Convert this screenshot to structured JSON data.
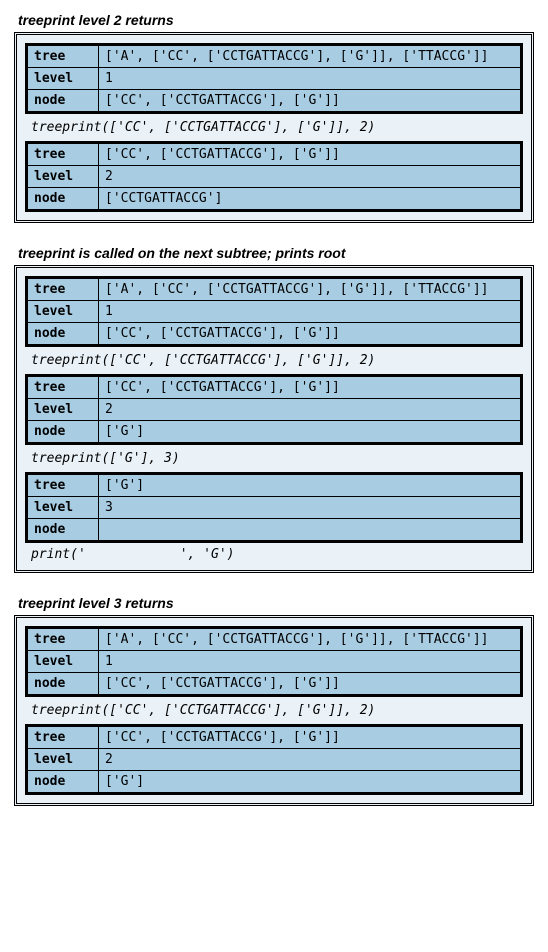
{
  "colors": {
    "outer_bg": "#eaf2f8",
    "table_bg": "#a8cde3",
    "border": "#000000"
  },
  "blocks": [
    {
      "caption": "treeprint level 2 returns",
      "segments": [
        {
          "type": "table",
          "rows": [
            {
              "label": "tree",
              "value": "['A', ['CC', ['CCTGATTACCG'], ['G']], ['TTACCG']]"
            },
            {
              "label": "level",
              "value": "1"
            },
            {
              "label": "node",
              "value": "['CC', ['CCTGATTACCG'], ['G']]"
            }
          ]
        },
        {
          "type": "call",
          "text": "treeprint(['CC', ['CCTGATTACCG'], ['G']], 2)"
        },
        {
          "type": "table",
          "rows": [
            {
              "label": "tree",
              "value": "['CC', ['CCTGATTACCG'], ['G']]"
            },
            {
              "label": "level",
              "value": "2"
            },
            {
              "label": "node",
              "value": "['CCTGATTACCG']"
            }
          ]
        }
      ]
    },
    {
      "caption": "treeprint is called on the next subtree; prints root",
      "segments": [
        {
          "type": "table",
          "rows": [
            {
              "label": "tree",
              "value": "['A', ['CC', ['CCTGATTACCG'], ['G']], ['TTACCG']]"
            },
            {
              "label": "level",
              "value": "1"
            },
            {
              "label": "node",
              "value": "['CC', ['CCTGATTACCG'], ['G']]"
            }
          ]
        },
        {
          "type": "call",
          "text": "treeprint(['CC', ['CCTGATTACCG'], ['G']], 2)"
        },
        {
          "type": "table",
          "rows": [
            {
              "label": "tree",
              "value": "['CC', ['CCTGATTACCG'], ['G']]"
            },
            {
              "label": "level",
              "value": "2"
            },
            {
              "label": "node",
              "value": "['G']"
            }
          ]
        },
        {
          "type": "call",
          "text": "treeprint(['G'], 3)"
        },
        {
          "type": "table",
          "rows": [
            {
              "label": "tree",
              "value": "['G']"
            },
            {
              "label": "level",
              "value": "3"
            },
            {
              "label": "node",
              "value": ""
            }
          ]
        },
        {
          "type": "print",
          "text": "print('            ', 'G')"
        }
      ]
    },
    {
      "caption": "treeprint level 3 returns",
      "segments": [
        {
          "type": "table",
          "rows": [
            {
              "label": "tree",
              "value": "['A', ['CC', ['CCTGATTACCG'], ['G']], ['TTACCG']]"
            },
            {
              "label": "level",
              "value": "1"
            },
            {
              "label": "node",
              "value": "['CC', ['CCTGATTACCG'], ['G']]"
            }
          ]
        },
        {
          "type": "call",
          "text": "treeprint(['CC', ['CCTGATTACCG'], ['G']], 2)"
        },
        {
          "type": "table",
          "rows": [
            {
              "label": "tree",
              "value": "['CC', ['CCTGATTACCG'], ['G']]"
            },
            {
              "label": "level",
              "value": "2"
            },
            {
              "label": "node",
              "value": "['G']"
            }
          ]
        }
      ]
    }
  ]
}
